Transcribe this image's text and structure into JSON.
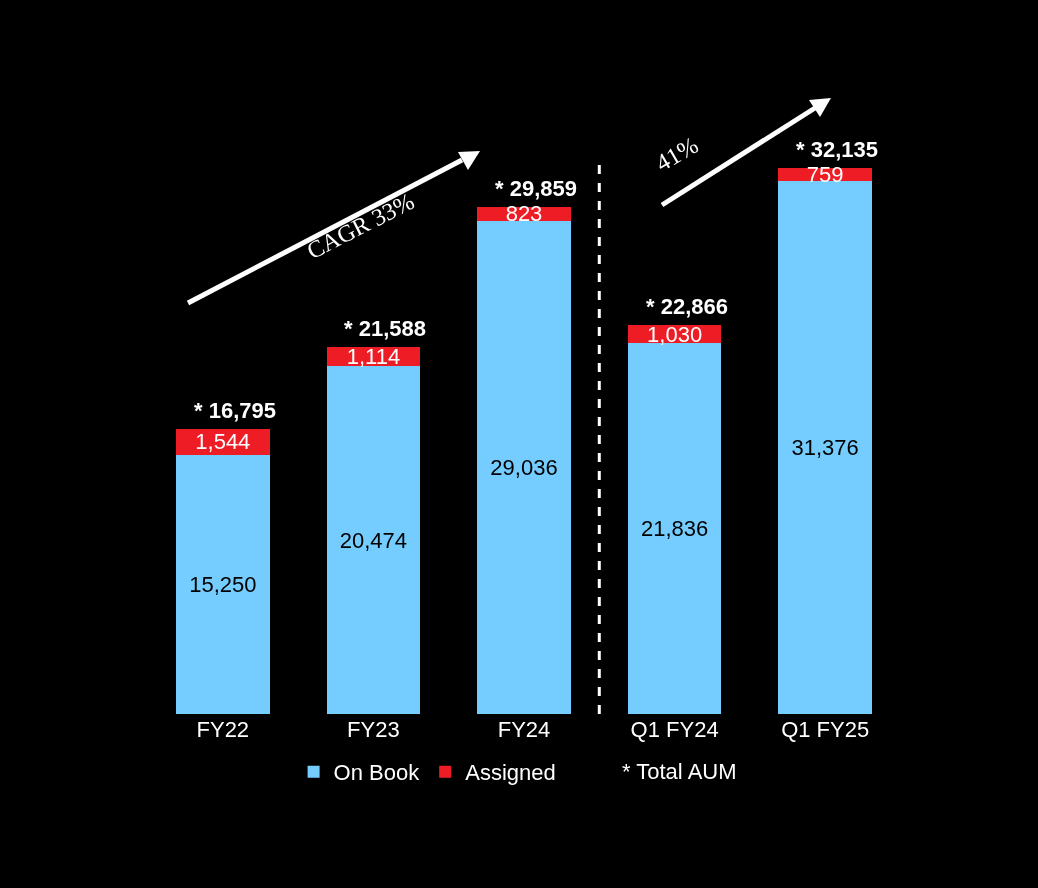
{
  "chart_data": {
    "type": "bar",
    "stacked": true,
    "categories": [
      "FY22",
      "FY23",
      "FY24",
      "Q1 FY24",
      "Q1 FY25"
    ],
    "series": [
      {
        "name": "On Book",
        "color": "#75cdff",
        "values": [
          15250,
          20474,
          29036,
          21836,
          31376
        ],
        "value_labels": [
          "15,250",
          "20,474",
          "29,036",
          "21,836",
          "31,376"
        ]
      },
      {
        "name": "Assigned",
        "color": "#ee1c25",
        "values": [
          1544,
          1114,
          823,
          1030,
          759
        ],
        "value_labels": [
          "1,544",
          "1,114",
          "823",
          "1,030",
          "759"
        ]
      }
    ],
    "totals": [
      "* 16,795",
      "* 21,588",
      "* 29,859",
      "* 22,866",
      "* 32,135"
    ],
    "annotations": [
      "CAGR 33%",
      "41%",
      "* Total AUM"
    ],
    "legend": "bottom",
    "grid": false,
    "tick_labels": "x"
  }
}
